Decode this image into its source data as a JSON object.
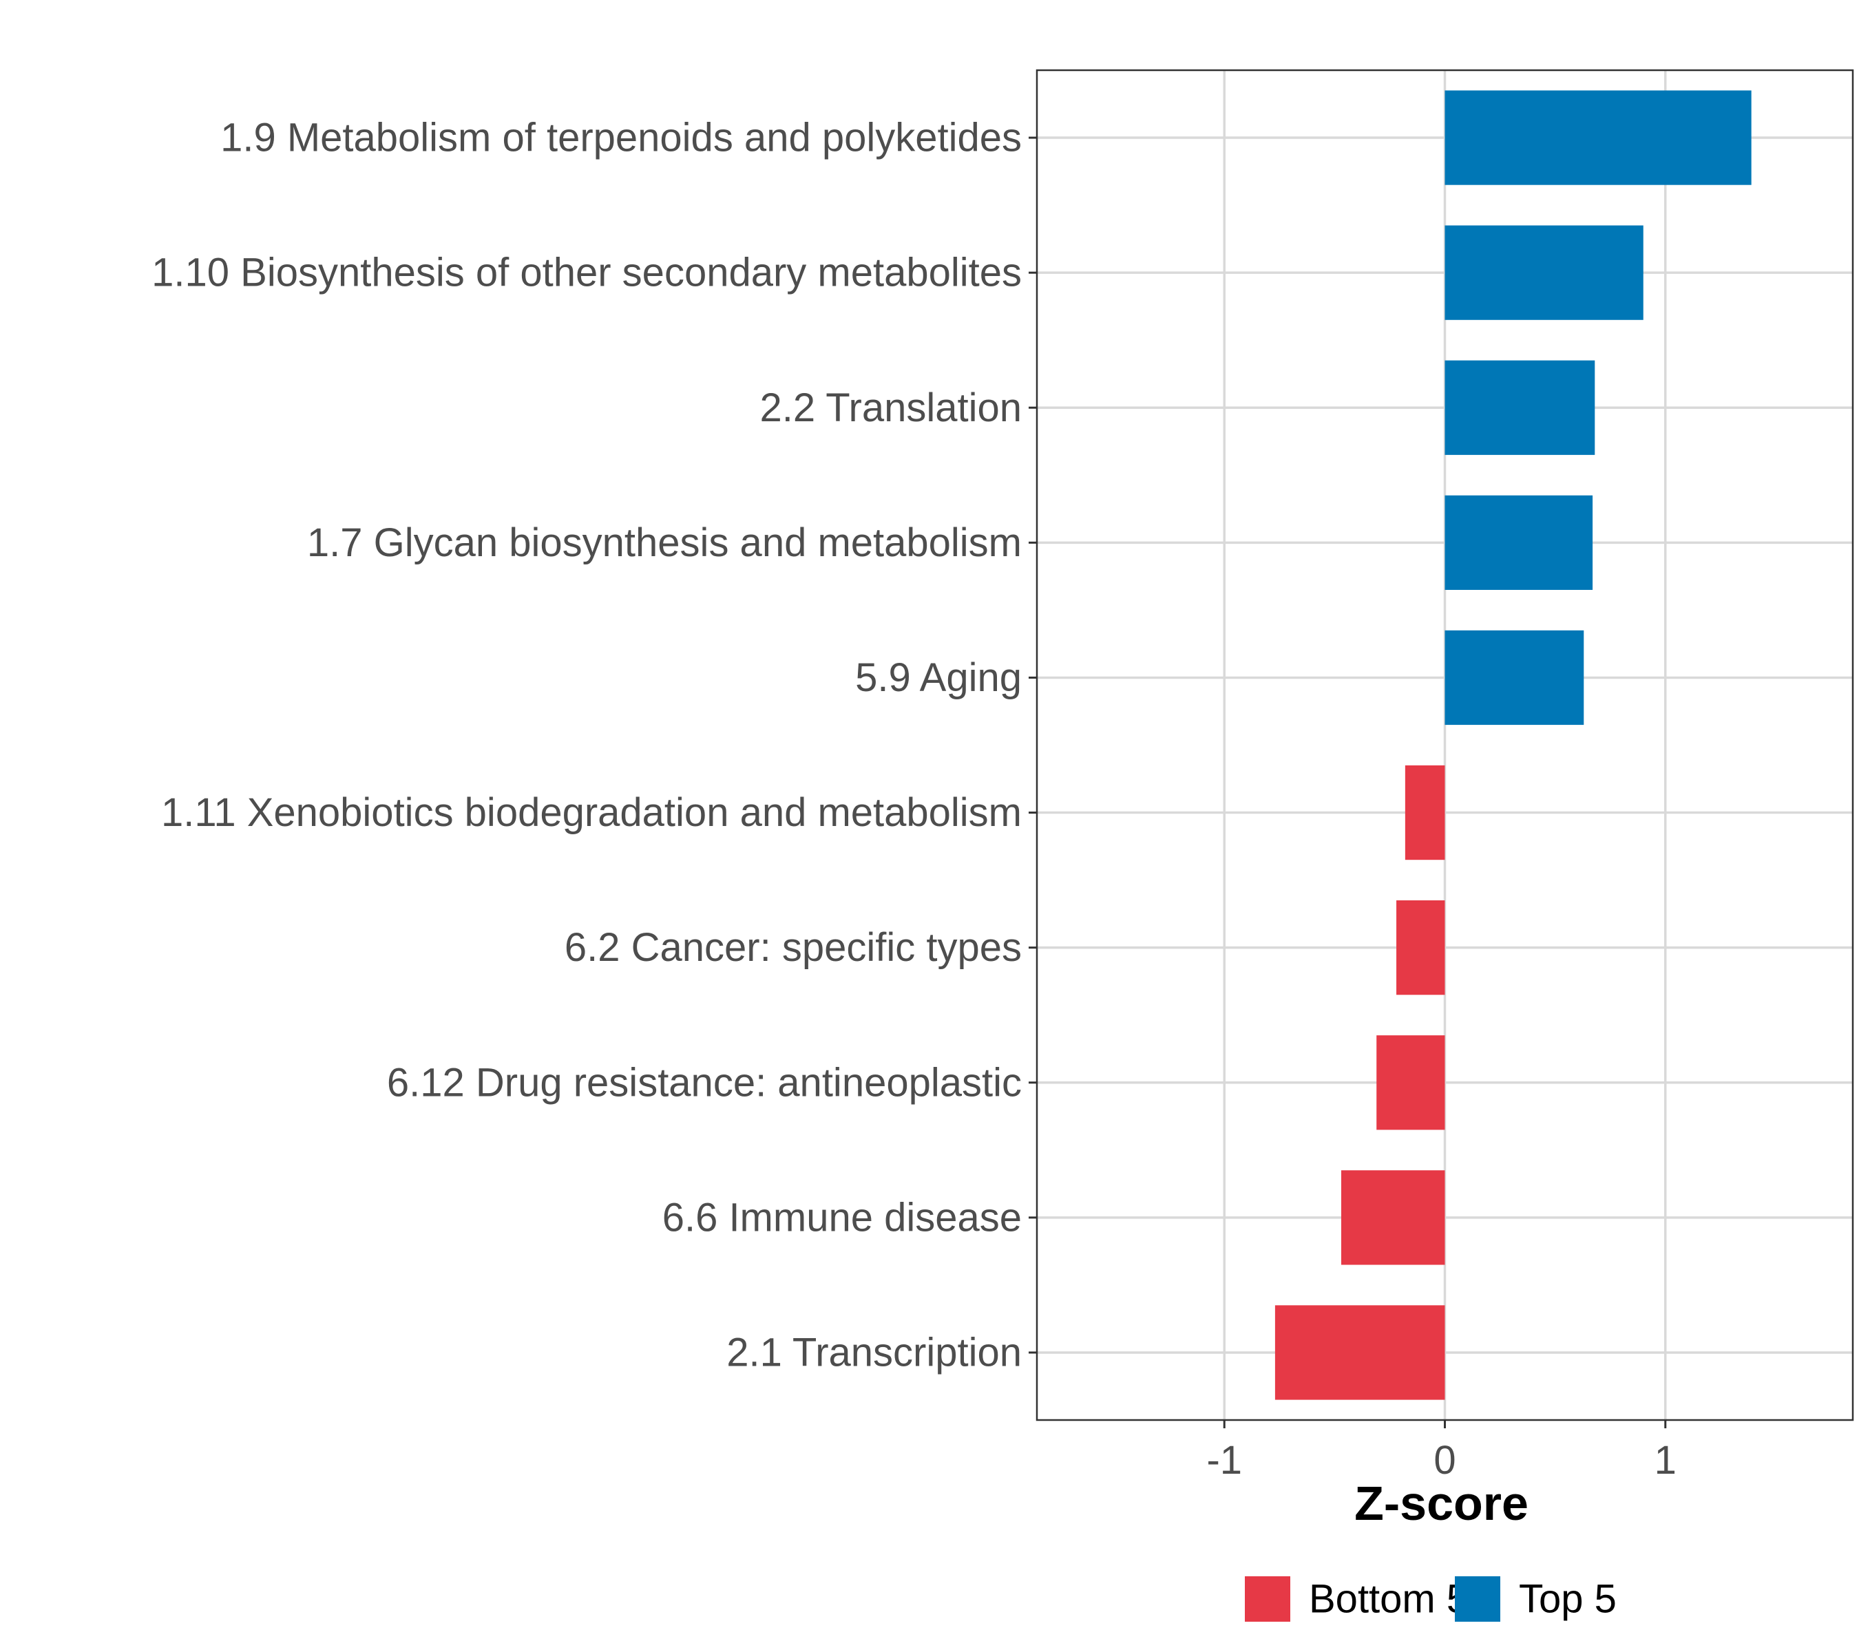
{
  "chart_data": {
    "type": "bar",
    "orientation": "horizontal",
    "categories": [
      "1.9 Metabolism of terpenoids and polyketides",
      "1.10 Biosynthesis of other secondary metabolites",
      "2.2 Translation",
      "1.7 Glycan biosynthesis and metabolism",
      "5.9 Aging",
      "1.11 Xenobiotics biodegradation and metabolism",
      "6.2 Cancer: specific types",
      "6.12 Drug resistance: antineoplastic",
      "6.6 Immune disease",
      "2.1 Transcription"
    ],
    "values": [
      1.39,
      0.9,
      0.68,
      0.67,
      0.63,
      -0.18,
      -0.22,
      -0.31,
      -0.47,
      -0.77
    ],
    "groups": [
      "Top 5",
      "Top 5",
      "Top 5",
      "Top 5",
      "Top 5",
      "Bottom 5",
      "Bottom 5",
      "Bottom 5",
      "Bottom 5",
      "Bottom 5"
    ],
    "xlabel": "Z-score",
    "ylabel": "",
    "xlim": [
      -1.85,
      1.85
    ],
    "xticks": [
      -1,
      0,
      1
    ],
    "xtick_labels": [
      "-1",
      "0",
      "1"
    ],
    "grid": true,
    "legend": {
      "position": "bottom",
      "entries": [
        {
          "label": "Bottom 5",
          "color": "#E63946"
        },
        {
          "label": "Top 5",
          "color": "#0077B6"
        }
      ]
    },
    "colors": {
      "Top 5": "#0077B6",
      "Bottom 5": "#E63946"
    }
  }
}
